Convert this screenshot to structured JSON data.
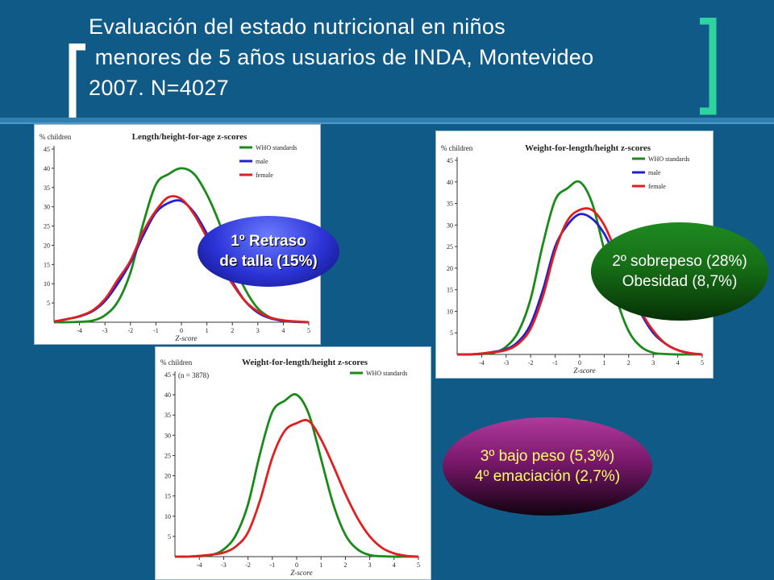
{
  "title": {
    "line1": "Evaluación del estado nutricional en niños",
    "line2": " menores de 5 años usuarios de INDA, Montevideo",
    "line3": "2007. N=4027"
  },
  "colors": {
    "background": "#0f5a86",
    "who": "#1a8a1a",
    "male": "#2020d0",
    "female": "#e02020",
    "bracket_left": "#ffffff",
    "bracket_right": "#2ed3a0"
  },
  "callouts": {
    "stunting": {
      "line1": "1º Retraso",
      "line2": "de talla (15%)"
    },
    "overweight": {
      "line1": "2º sobrepeso (28%)",
      "line2": "Obesidad (8,7%)"
    },
    "underweight": {
      "line1": "3º bajo peso (5,3%)",
      "line2": "4º emaciación (2,7%)"
    }
  },
  "chart_data": [
    {
      "id": "length_for_age",
      "type": "line",
      "title": "Length/height-for-age z-scores",
      "ylabel": "% children",
      "xlabel": "Z-score",
      "note": "",
      "xlim": [
        -5,
        5
      ],
      "ylim": [
        0,
        45
      ],
      "xticks": [
        -4,
        -3,
        -2,
        -1,
        0,
        1,
        2,
        3,
        4,
        5
      ],
      "yticks": [
        5,
        10,
        15,
        20,
        25,
        30,
        35,
        40,
        45
      ],
      "legend": "top-right",
      "x": [
        -5,
        -4.5,
        -4,
        -3.5,
        -3,
        -2.5,
        -2,
        -1.5,
        -1,
        -0.5,
        0,
        0.5,
        1,
        1.5,
        2,
        2.5,
        3,
        3.5,
        4,
        4.5,
        5
      ],
      "series": [
        {
          "name": "WHO standards",
          "color": "#1a8a1a",
          "values": [
            0,
            0,
            0.1,
            0.4,
            1.8,
            5.3,
            12.9,
            25.6,
            35.8,
            38.5,
            40,
            38.5,
            33.2,
            25.6,
            16.1,
            8.6,
            3.6,
            1.2,
            0.3,
            0.1,
            0
          ]
        },
        {
          "name": "male",
          "color": "#2020d0",
          "values": [
            0.2,
            0.8,
            1.5,
            2.8,
            5.5,
            10,
            15.5,
            22.5,
            28.5,
            31,
            31.5,
            28.5,
            23,
            16.5,
            10.5,
            5.5,
            2.5,
            1,
            0.4,
            0.1,
            0
          ]
        },
        {
          "name": "female",
          "color": "#e02020",
          "values": [
            0.2,
            0.8,
            1.6,
            3,
            6,
            11,
            16,
            23.5,
            29,
            32.5,
            32,
            28,
            22,
            15.5,
            10,
            5.5,
            2.8,
            1.2,
            0.5,
            0.2,
            0
          ]
        }
      ]
    },
    {
      "id": "weight_for_length_sex",
      "type": "line",
      "title": "Weight-for-length/height z-scores",
      "ylabel": "% children",
      "xlabel": "Z-score",
      "note": "",
      "xlim": [
        -5,
        5
      ],
      "ylim": [
        0,
        45
      ],
      "xticks": [
        -4,
        -3,
        -2,
        -1,
        0,
        1,
        2,
        3,
        4,
        5
      ],
      "yticks": [
        5,
        10,
        15,
        20,
        25,
        30,
        35,
        40,
        45
      ],
      "legend": "top-right",
      "x": [
        -5,
        -4.5,
        -4,
        -3.5,
        -3,
        -2.5,
        -2,
        -1.5,
        -1,
        -0.5,
        0,
        0.5,
        1,
        1.5,
        2,
        2.5,
        3,
        3.5,
        4,
        4.5,
        5
      ],
      "series": [
        {
          "name": "WHO standards",
          "color": "#1a8a1a",
          "values": [
            0,
            0,
            0.1,
            0.4,
            1.8,
            5.3,
            12.9,
            25.6,
            35.8,
            38.5,
            40,
            35.2,
            24.2,
            13,
            5.4,
            1.8,
            0.4,
            0.1,
            0,
            0,
            0
          ]
        },
        {
          "name": "male",
          "color": "#2020d0",
          "values": [
            0,
            0,
            0.2,
            0.6,
            1.2,
            3,
            7,
            15,
            25,
            30,
            32.5,
            31.5,
            28,
            22,
            15.5,
            9.5,
            5,
            2.5,
            1,
            0.3,
            0
          ]
        },
        {
          "name": "female",
          "color": "#e02020",
          "values": [
            0,
            0,
            0.2,
            0.5,
            1,
            2.5,
            6,
            13.5,
            24,
            31,
            33.5,
            33.5,
            30,
            23.5,
            16.5,
            10,
            5.5,
            2.5,
            1,
            0.3,
            0
          ]
        }
      ]
    },
    {
      "id": "weight_for_length_total",
      "type": "line",
      "title": "Weight-for-length/height z-scores",
      "ylabel": "% children",
      "xlabel": "Z-score",
      "note": "(n = 3878)",
      "xlim": [
        -5,
        5
      ],
      "ylim": [
        0,
        45
      ],
      "xticks": [
        -4,
        -3,
        -2,
        -1,
        0,
        1,
        2,
        3,
        4,
        5
      ],
      "yticks": [
        5,
        10,
        15,
        20,
        25,
        30,
        35,
        40,
        45
      ],
      "legend": "top-right",
      "x": [
        -5,
        -4.5,
        -4,
        -3.5,
        -3,
        -2.5,
        -2,
        -1.5,
        -1,
        -0.5,
        0,
        0.5,
        1,
        1.5,
        2,
        2.5,
        3,
        3.5,
        4,
        4.5,
        5
      ],
      "series": [
        {
          "name": "WHO standards",
          "color": "#1a8a1a",
          "values": [
            0,
            0,
            0.1,
            0.4,
            1.8,
            5.3,
            12.9,
            25.6,
            35.8,
            38.5,
            40,
            35.2,
            24.2,
            13,
            5.4,
            1.8,
            0.4,
            0.1,
            0,
            0,
            0
          ]
        },
        {
          "name": "",
          "color": "#e02020",
          "values": [
            0,
            0,
            0.2,
            0.5,
            1,
            2.5,
            6,
            14,
            24.5,
            31,
            33,
            33.5,
            29,
            22.5,
            15.5,
            9.5,
            5,
            2.2,
            0.8,
            0.2,
            0
          ]
        }
      ]
    }
  ]
}
